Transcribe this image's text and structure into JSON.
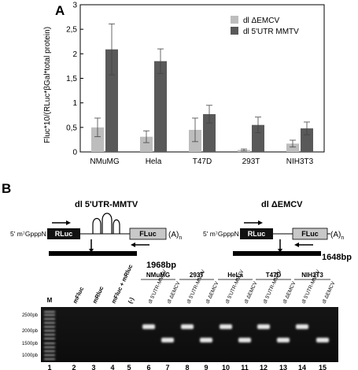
{
  "panelA": {
    "label": "A",
    "ylabel": "Fluc*10/(RLuc*βGal*total protein)",
    "legend": [
      "dl ΔEMCV",
      "dl 5'UTR MMTV"
    ]
  },
  "chart_data": {
    "type": "bar",
    "categories": [
      "NMuMG",
      "Hela",
      "T47D",
      "293T",
      "NIH3T3"
    ],
    "series": [
      {
        "name": "dl ΔEMCV",
        "color": "#bdbdbd",
        "values": [
          0.5,
          0.31,
          0.45,
          0.04,
          0.17
        ],
        "errors": [
          0.19,
          0.12,
          0.24,
          0.02,
          0.07
        ]
      },
      {
        "name": "dl 5'UTR MMTV",
        "color": "#595959",
        "values": [
          2.09,
          1.85,
          0.77,
          0.55,
          0.48
        ],
        "errors": [
          0.52,
          0.25,
          0.18,
          0.16,
          0.13
        ]
      }
    ],
    "ylim": [
      0,
      3
    ],
    "yticks": [
      "0",
      "0,5",
      "1",
      "1,5",
      "2",
      "2,5",
      "3"
    ],
    "grid": false,
    "legend_position": "top-right"
  },
  "panelB": {
    "label": "B",
    "construct1": {
      "title": "dl 5'UTR-MMTV",
      "cap": "5' m⁷GpppN",
      "gene1": "RLuc",
      "gene2": "FLuc",
      "polyA": "(A)",
      "polyA_sub": "n",
      "product": "1968bp"
    },
    "construct2": {
      "title": "dl ΔEMCV",
      "cap": "5' m⁷GpppN",
      "gene1": "RLuc",
      "gene2": "FLuc",
      "polyA": "(A)",
      "polyA_sub": "n",
      "product": "1648bp"
    },
    "gel": {
      "group_headers": [
        "NMuMG",
        "293T",
        "HeLa",
        "T47D",
        "NIH3T3"
      ],
      "lane_labels": [
        "M",
        "mFluc",
        "mRluc",
        "mFluc + mRluc",
        "(-)",
        "dl 5'UTR-MMTV",
        "dl ΔEMCV",
        "dl 5'UTR-MMTV",
        "dl ΔEMCV",
        "dl 5'UTR-MMTV",
        "dl ΔEMCV",
        "dl 5'UTR-MMTV",
        "dl ΔEMCV",
        "dl 5'UTR-MMTV",
        "dl ΔEMCV"
      ],
      "lane_numbers": [
        "1",
        "2",
        "3",
        "4",
        "5",
        "6",
        "7",
        "8",
        "9",
        "10",
        "11",
        "12",
        "13",
        "14",
        "15"
      ],
      "markers": [
        "2500pb",
        "2000pb",
        "1500pb",
        "1000pb"
      ]
    }
  }
}
